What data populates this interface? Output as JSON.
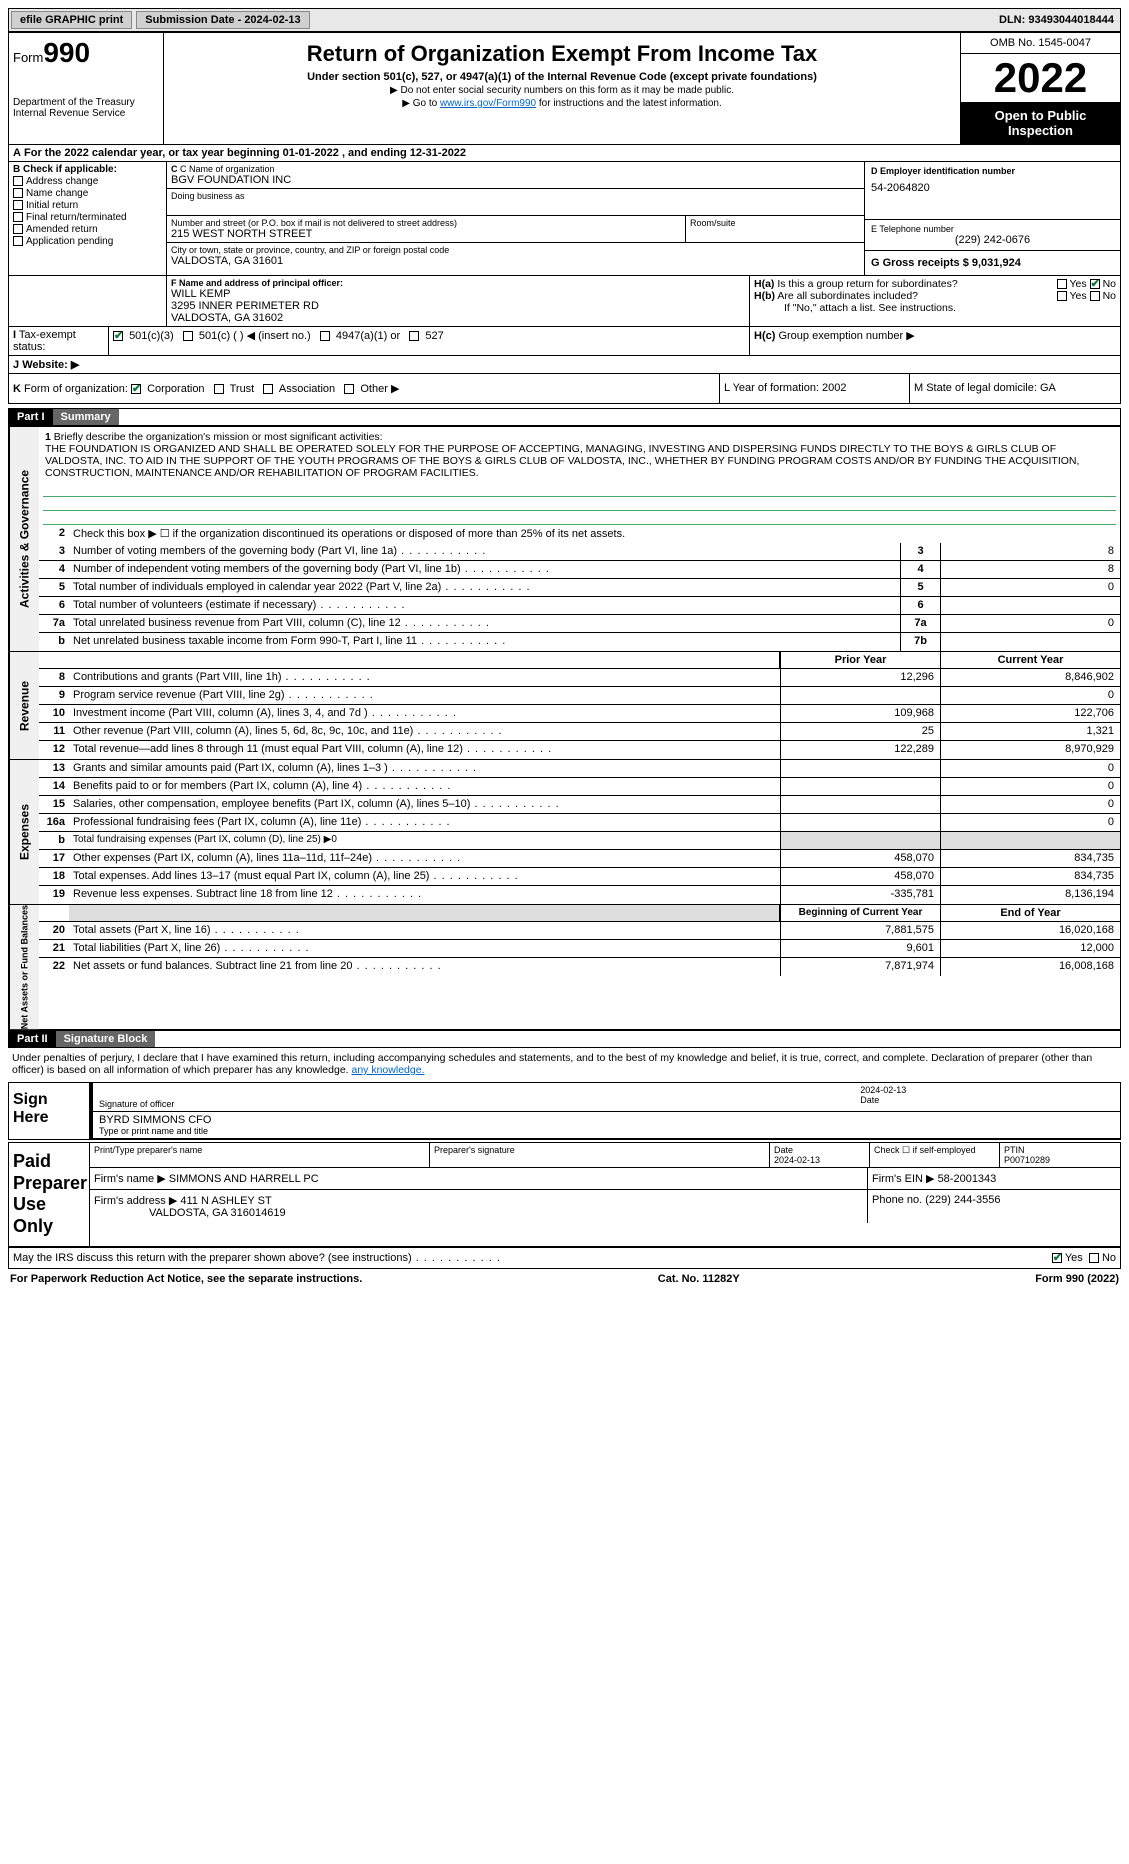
{
  "toolbar": {
    "efile": "efile GRAPHIC print",
    "submission_label": "Submission Date - 2024-02-13",
    "dln_label": "DLN: 93493044018444"
  },
  "header": {
    "form_word": "Form",
    "form_no": "990",
    "dept": "Department of the Treasury",
    "irs": "Internal Revenue Service",
    "title": "Return of Organization Exempt From Income Tax",
    "subtitle": "Under section 501(c), 527, or 4947(a)(1) of the Internal Revenue Code (except private foundations)",
    "note1": "▶ Do not enter social security numbers on this form as it may be made public.",
    "note2_pre": "▶ Go to ",
    "note2_link": "www.irs.gov/Form990",
    "note2_post": " for instructions and the latest information.",
    "omb": "OMB No. 1545-0047",
    "year": "2022",
    "open": "Open to Public Inspection"
  },
  "A": {
    "text": "For the 2022 calendar year, or tax year beginning 01-01-2022   , and ending 12-31-2022"
  },
  "B": {
    "label": "B Check if applicable:",
    "items": [
      "Address change",
      "Name change",
      "Initial return",
      "Final return/terminated",
      "Amended return",
      "Application pending"
    ]
  },
  "C": {
    "name_label": "C Name of organization",
    "name": "BGV FOUNDATION INC",
    "dba_label": "Doing business as",
    "street_label": "Number and street (or P.O. box if mail is not delivered to street address)",
    "street": "215 WEST NORTH STREET",
    "room_label": "Room/suite",
    "city_label": "City or town, state or province, country, and ZIP or foreign postal code",
    "city": "VALDOSTA, GA  31601"
  },
  "D": {
    "label": "D Employer identification number",
    "value": "54-2064820"
  },
  "E": {
    "label": "E Telephone number",
    "value": "(229) 242-0676"
  },
  "G": {
    "label": "G Gross receipts $ 9,031,924"
  },
  "F": {
    "label": "F  Name and address of principal officer:",
    "name": "WILL KEMP",
    "addr1": "3295 INNER PERIMETER RD",
    "addr2": "VALDOSTA, GA  31602"
  },
  "H": {
    "a": "Is this a group return for subordinates?",
    "b": "Are all subordinates included?",
    "note": "If \"No,\" attach a list. See instructions.",
    "c": "Group exemption number ▶"
  },
  "I": {
    "label": "Tax-exempt status:",
    "opts": [
      "501(c)(3)",
      "501(c) (  ) ◀ (insert no.)",
      "4947(a)(1) or",
      "527"
    ]
  },
  "J": {
    "label": "Website: ▶"
  },
  "K": {
    "label": "Form of organization:",
    "opts": [
      "Corporation",
      "Trust",
      "Association",
      "Other ▶"
    ]
  },
  "L": {
    "label": "L Year of formation: 2002"
  },
  "M": {
    "label": "M State of legal domicile: GA"
  },
  "part1": {
    "hdr": "Part I",
    "title": "Summary"
  },
  "summary": {
    "l1_label": "Briefly describe the organization's mission or most significant activities:",
    "mission": "THE FOUNDATION IS ORGANIZED AND SHALL BE OPERATED SOLELY FOR THE PURPOSE OF ACCEPTING, MANAGING, INVESTING AND DISPERSING FUNDS DIRECTLY TO THE BOYS & GIRLS CLUB OF VALDOSTA, INC. TO AID IN THE SUPPORT OF THE YOUTH PROGRAMS OF THE BOYS & GIRLS CLUB OF VALDOSTA, INC., WHETHER BY FUNDING PROGRAM COSTS AND/OR BY FUNDING THE ACQUISITION, CONSTRUCTION, MAINTENANCE AND/OR REHABILITATION OF PROGRAM FACILITIES.",
    "l2": "Check this box ▶ ☐  if the organization discontinued its operations or disposed of more than 25% of its net assets.",
    "lines_gov": [
      {
        "n": "3",
        "t": "Number of voting members of the governing body (Part VI, line 1a)",
        "box": "3",
        "v": "8"
      },
      {
        "n": "4",
        "t": "Number of independent voting members of the governing body (Part VI, line 1b)",
        "box": "4",
        "v": "8"
      },
      {
        "n": "5",
        "t": "Total number of individuals employed in calendar year 2022 (Part V, line 2a)",
        "box": "5",
        "v": "0"
      },
      {
        "n": "6",
        "t": "Total number of volunteers (estimate if necessary)",
        "box": "6",
        "v": ""
      },
      {
        "n": "7a",
        "t": "Total unrelated business revenue from Part VIII, column (C), line 12",
        "box": "7a",
        "v": "0"
      },
      {
        "n": "b",
        "t": "Net unrelated business taxable income from Form 990-T, Part I, line 11",
        "box": "7b",
        "v": ""
      }
    ],
    "col_hdr": {
      "prior": "Prior Year",
      "current": "Current Year"
    },
    "lines_rev": [
      {
        "n": "8",
        "t": "Contributions and grants (Part VIII, line 1h)",
        "p": "12,296",
        "c": "8,846,902"
      },
      {
        "n": "9",
        "t": "Program service revenue (Part VIII, line 2g)",
        "p": "",
        "c": "0"
      },
      {
        "n": "10",
        "t": "Investment income (Part VIII, column (A), lines 3, 4, and 7d )",
        "p": "109,968",
        "c": "122,706"
      },
      {
        "n": "11",
        "t": "Other revenue (Part VIII, column (A), lines 5, 6d, 8c, 9c, 10c, and 11e)",
        "p": "25",
        "c": "1,321"
      },
      {
        "n": "12",
        "t": "Total revenue—add lines 8 through 11 (must equal Part VIII, column (A), line 12)",
        "p": "122,289",
        "c": "8,970,929"
      }
    ],
    "lines_exp": [
      {
        "n": "13",
        "t": "Grants and similar amounts paid (Part IX, column (A), lines 1–3 )",
        "p": "",
        "c": "0"
      },
      {
        "n": "14",
        "t": "Benefits paid to or for members (Part IX, column (A), line 4)",
        "p": "",
        "c": "0"
      },
      {
        "n": "15",
        "t": "Salaries, other compensation, employee benefits (Part IX, column (A), lines 5–10)",
        "p": "",
        "c": "0"
      },
      {
        "n": "16a",
        "t": "Professional fundraising fees (Part IX, column (A), line 11e)",
        "p": "",
        "c": "0"
      },
      {
        "n": "b",
        "t": "Total fundraising expenses (Part IX, column (D), line 25) ▶0",
        "p": "shaded",
        "c": "shaded"
      },
      {
        "n": "17",
        "t": "Other expenses (Part IX, column (A), lines 11a–11d, 11f–24e)",
        "p": "458,070",
        "c": "834,735"
      },
      {
        "n": "18",
        "t": "Total expenses. Add lines 13–17 (must equal Part IX, column (A), line 25)",
        "p": "458,070",
        "c": "834,735"
      },
      {
        "n": "19",
        "t": "Revenue less expenses. Subtract line 18 from line 12",
        "p": "-335,781",
        "c": "8,136,194"
      }
    ],
    "col_hdr2": {
      "prior": "Beginning of Current Year",
      "current": "End of Year"
    },
    "lines_net": [
      {
        "n": "20",
        "t": "Total assets (Part X, line 16)",
        "p": "7,881,575",
        "c": "16,020,168"
      },
      {
        "n": "21",
        "t": "Total liabilities (Part X, line 26)",
        "p": "9,601",
        "c": "12,000"
      },
      {
        "n": "22",
        "t": "Net assets or fund balances. Subtract line 21 from line 20",
        "p": "7,871,974",
        "c": "16,008,168"
      }
    ],
    "vbars": [
      "Activities & Governance",
      "Revenue",
      "Expenses",
      "Net Assets or Fund Balances"
    ]
  },
  "part2": {
    "hdr": "Part II",
    "title": "Signature Block"
  },
  "sig": {
    "para": "Under penalties of perjury, I declare that I have examined this return, including accompanying schedules and statements, and to the best of my knowledge and belief, it is true, correct, and complete. Declaration of preparer (other than officer) is based on all information of which preparer has any knowledge.",
    "sign_here": "Sign Here",
    "sig_officer": "Signature of officer",
    "date": "Date",
    "date_val": "2024-02-13",
    "typed": "BYRD SIMMONS CFO",
    "typed_label": "Type or print name and title",
    "paid": "Paid Preparer Use Only",
    "prep_name_label": "Print/Type preparer's name",
    "prep_sig_label": "Preparer's signature",
    "prep_date": "2024-02-13",
    "check_if": "Check ☐ if self-employed",
    "ptin_label": "PTIN",
    "ptin": "P00710289",
    "firm_name_label": "Firm's name   ▶",
    "firm_name": "SIMMONS AND HARRELL PC",
    "firm_ein_label": "Firm's EIN ▶",
    "firm_ein": "58-2001343",
    "firm_addr_label": "Firm's address ▶",
    "firm_addr": "411 N ASHLEY ST",
    "firm_city": "VALDOSTA, GA  316014619",
    "phone_label": "Phone no.",
    "phone": "(229) 244-3556",
    "may_irs": "May the IRS discuss this return with the preparer shown above? (see instructions)"
  },
  "footer": {
    "left": "For Paperwork Reduction Act Notice, see the separate instructions.",
    "mid": "Cat. No. 11282Y",
    "right_form": "Form",
    "right_no": "990",
    "right_year": "(2022)"
  },
  "yes": "Yes",
  "no": "No"
}
